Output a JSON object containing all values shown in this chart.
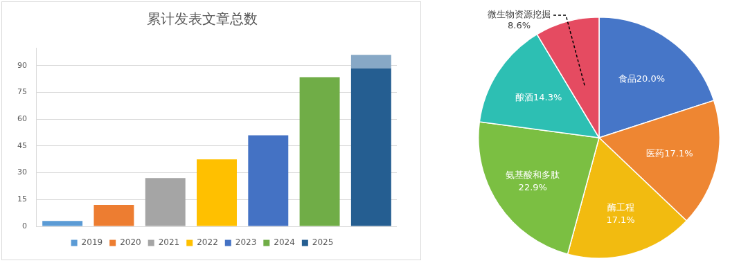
{
  "chart_data": [
    {
      "type": "bar",
      "title": "累计发表文章总数",
      "categories": [
        null,
        null,
        null,
        null,
        null,
        null,
        null
      ],
      "stacked": true,
      "ylim": [
        0,
        100
      ],
      "yticks": [
        0,
        15,
        30,
        45,
        60,
        75,
        90
      ],
      "grid": "y",
      "legend": "bottom",
      "series": [
        {
          "name": "2019",
          "color": "#5b9bd5",
          "values": [
            3,
            null,
            null,
            null,
            null,
            null,
            null
          ]
        },
        {
          "name": "2020",
          "color": "#ed7d31",
          "values": [
            null,
            12,
            null,
            null,
            null,
            null,
            null
          ]
        },
        {
          "name": "2021",
          "color": "#a5a5a5",
          "values": [
            null,
            null,
            27,
            null,
            null,
            null,
            null
          ]
        },
        {
          "name": "2022",
          "color": "#ffc000",
          "values": [
            null,
            null,
            null,
            37.5,
            null,
            null,
            null
          ]
        },
        {
          "name": "2023",
          "color": "#4472c4",
          "values": [
            null,
            null,
            null,
            null,
            51,
            null,
            null
          ]
        },
        {
          "name": "2024",
          "color": "#70ad47",
          "values": [
            null,
            null,
            null,
            null,
            null,
            83.5,
            null
          ]
        },
        {
          "name": "2025",
          "color": "#255e91",
          "values": [
            null,
            null,
            null,
            null,
            null,
            null,
            88.5
          ]
        },
        {
          "color": "#87a8c6",
          "values": [
            null,
            null,
            null,
            null,
            null,
            null,
            7.5
          ]
        }
      ]
    },
    {
      "type": "pie",
      "categories": [
        "食品",
        "医药",
        "酶工程",
        "氨基酸和多肽",
        "酿酒",
        "微生物资源挖掘"
      ],
      "values": [
        20.0,
        17.1,
        17.1,
        22.9,
        14.3,
        8.6
      ],
      "colors": [
        "#4676c8",
        "#ee8632",
        "#f2bb10",
        "#7bbf42",
        "#2dbfb3",
        "#e54b61"
      ],
      "value_labels": [
        "20.0%",
        "17.1%",
        "17.1%",
        "22.9%",
        "14.3%",
        "8.6%"
      ],
      "legend": false
    }
  ]
}
